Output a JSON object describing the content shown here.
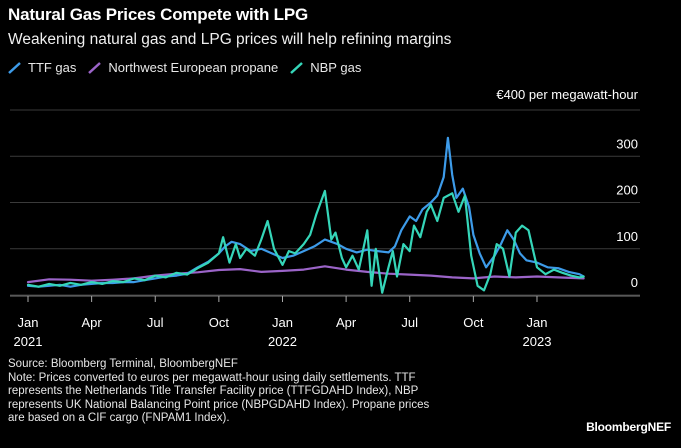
{
  "title": "Natural Gas Prices Compete with LPG",
  "subtitle": "Weakening natural gas and LPG prices will help refining margins",
  "legend": [
    {
      "label": "TTF gas",
      "color": "#3d9be9"
    },
    {
      "label": "Northwest European propane",
      "color": "#9b64c8"
    },
    {
      "label": "NBP gas",
      "color": "#35d6b9"
    }
  ],
  "source": {
    "line1": "Source: Bloomberg Terminal, BloombergNEF",
    "line2": "Note: Prices converted to euros per megawatt-hour using daily settlements. TTF",
    "line3": "represents the Netherlands Title Transfer Facility price (TTFGDAHD Index), NBP",
    "line4": "represents UK National Balancing Point price (NBPGDAHD Index). Propane prices",
    "line5": "are based on a CIF cargo (FNPAM1 Index)."
  },
  "brand": "BloombergNEF",
  "chart_data": {
    "type": "line",
    "title": "Natural Gas Prices Compete with LPG",
    "ylabel": "€400 per megawatt-hour",
    "ylim": [
      0,
      400
    ],
    "y_ticks": [
      {
        "value": 400,
        "label": "€400 per megawatt-hour"
      },
      {
        "value": 300,
        "label": "300"
      },
      {
        "value": 200,
        "label": "200"
      },
      {
        "value": 100,
        "label": "100"
      },
      {
        "value": 0,
        "label": "0"
      }
    ],
    "x_unit": "months since Jan 2021",
    "xlim": [
      0,
      26.5
    ],
    "x_ticks": [
      {
        "value": 0,
        "label": "Jan",
        "year": "2021"
      },
      {
        "value": 3,
        "label": "Apr",
        "year": ""
      },
      {
        "value": 6,
        "label": "Jul",
        "year": ""
      },
      {
        "value": 9,
        "label": "Oct",
        "year": ""
      },
      {
        "value": 12,
        "label": "Jan",
        "year": "2022"
      },
      {
        "value": 15,
        "label": "Apr",
        "year": ""
      },
      {
        "value": 18,
        "label": "Jul",
        "year": ""
      },
      {
        "value": 21,
        "label": "Oct",
        "year": ""
      },
      {
        "value": 24,
        "label": "Jan",
        "year": "2023"
      }
    ],
    "series": [
      {
        "name": "Northwest European propane",
        "color": "#9b64c8",
        "x": [
          0,
          1,
          2,
          3,
          4,
          5,
          6,
          7,
          8,
          9,
          10,
          11,
          12,
          13,
          14,
          15,
          16,
          17,
          18,
          19,
          20,
          21,
          22,
          23,
          24,
          25,
          26.2
        ],
        "y": [
          28,
          34,
          33,
          31,
          33,
          36,
          42,
          46,
          49,
          54,
          56,
          50,
          52,
          55,
          62,
          55,
          50,
          46,
          44,
          42,
          38,
          36,
          40,
          38,
          40,
          38,
          36
        ]
      },
      {
        "name": "TTF gas",
        "color": "#3d9be9",
        "x": [
          0,
          0.5,
          1,
          1.5,
          2,
          2.5,
          3,
          3.5,
          4,
          4.5,
          5,
          5.5,
          6,
          6.5,
          7,
          7.5,
          8,
          8.5,
          9,
          9.3,
          9.6,
          10,
          10.5,
          11,
          11.5,
          12,
          12.5,
          13,
          13.5,
          14,
          14.3,
          14.6,
          15,
          15.5,
          16,
          16.5,
          17,
          17.3,
          17.6,
          18,
          18.3,
          18.6,
          19,
          19.3,
          19.6,
          19.8,
          20,
          20.2,
          20.5,
          20.8,
          21,
          21.3,
          21.6,
          22,
          22.3,
          22.6,
          22.9,
          23.2,
          23.5,
          24,
          24.5,
          25,
          25.5,
          26,
          26.2
        ],
        "y": [
          20,
          18,
          20,
          22,
          18,
          22,
          24,
          26,
          26,
          28,
          28,
          32,
          36,
          40,
          42,
          46,
          60,
          72,
          90,
          105,
          115,
          110,
          95,
          100,
          90,
          80,
          85,
          95,
          105,
          120,
          115,
          110,
          100,
          92,
          98,
          95,
          92,
          105,
          140,
          170,
          160,
          185,
          200,
          215,
          255,
          340,
          260,
          210,
          230,
          190,
          130,
          90,
          60,
          85,
          110,
          140,
          120,
          90,
          75,
          70,
          60,
          58,
          50,
          45,
          40
        ]
      },
      {
        "name": "NBP gas",
        "color": "#35d6b9",
        "x": [
          0,
          0.5,
          1,
          1.5,
          2,
          2.5,
          3,
          3.5,
          4,
          4.5,
          5,
          5.5,
          6,
          6.5,
          7,
          7.5,
          8,
          8.5,
          9,
          9.2,
          9.5,
          9.8,
          10,
          10.3,
          10.7,
          11,
          11.3,
          11.6,
          12,
          12.3,
          12.6,
          13,
          13.3,
          13.6,
          14,
          14.3,
          14.5,
          14.8,
          15,
          15.3,
          15.6,
          16,
          16.2,
          16.4,
          16.7,
          17,
          17.2,
          17.4,
          17.7,
          18,
          18.2,
          18.5,
          18.8,
          19,
          19.3,
          19.6,
          20,
          20.3,
          20.6,
          20.9,
          21.2,
          21.5,
          21.8,
          22.1,
          22.4,
          22.7,
          23,
          23.3,
          23.6,
          24,
          24.4,
          24.8,
          25.2,
          25.6,
          26,
          26.2
        ],
        "y": [
          22,
          18,
          24,
          20,
          26,
          22,
          28,
          24,
          30,
          28,
          36,
          32,
          42,
          38,
          48,
          44,
          58,
          70,
          90,
          125,
          70,
          110,
          80,
          100,
          85,
          120,
          160,
          100,
          65,
          95,
          90,
          110,
          130,
          175,
          225,
          120,
          135,
          80,
          60,
          85,
          55,
          140,
          20,
          100,
          5,
          60,
          95,
          40,
          110,
          95,
          150,
          125,
          180,
          195,
          160,
          210,
          220,
          180,
          215,
          85,
          20,
          10,
          45,
          110,
          100,
          40,
          135,
          150,
          140,
          60,
          45,
          55,
          48,
          42,
          38,
          40
        ]
      }
    ],
    "gridlines": true,
    "legend_position": "top-left"
  }
}
